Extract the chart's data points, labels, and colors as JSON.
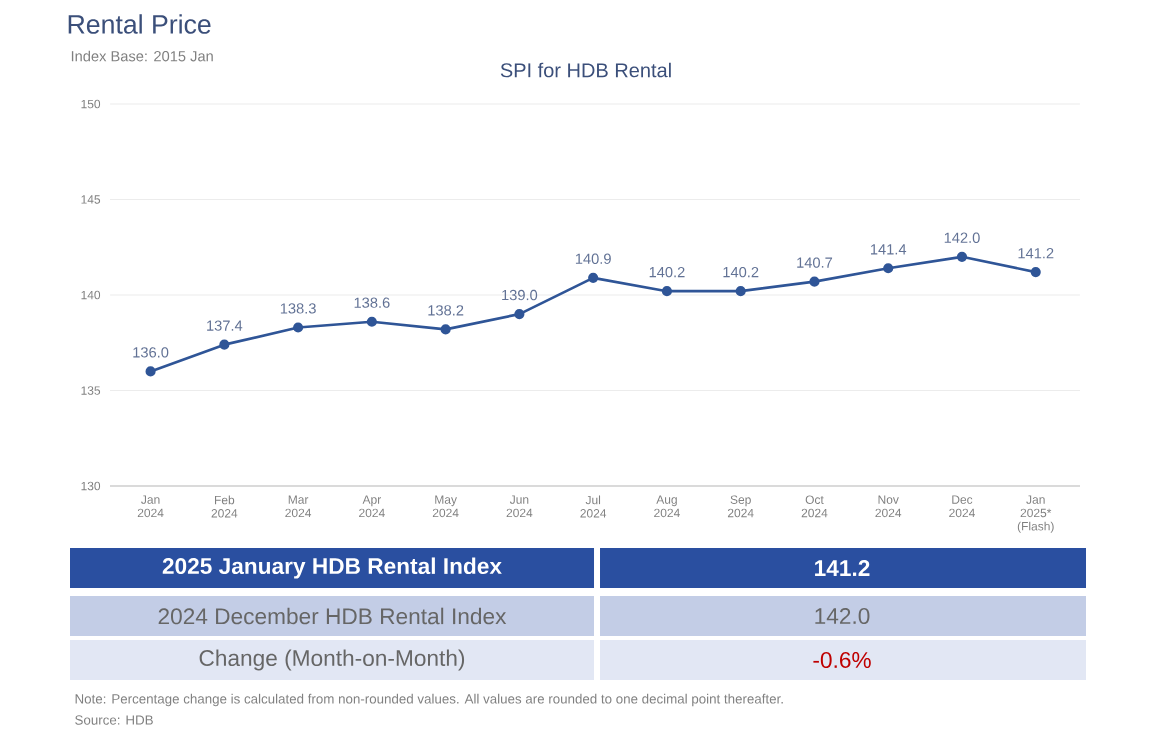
{
  "chart_data": {
    "type": "line",
    "title": "Rental Price",
    "subtitle": "Index Base: 2015 Jan",
    "categories": [
      "Jan 2024",
      "Feb 2024",
      "Mar 2024",
      "Apr 2024",
      "May 2024",
      "Jun 2024",
      "Jul 2024",
      "Aug 2024",
      "Sep 2024",
      "Oct 2024",
      "Nov 2024",
      "Dec 2024",
      "Jan 2025* (Flash)"
    ],
    "values": [
      136.0,
      137.4,
      138.3,
      138.6,
      138.2,
      139.0,
      140.9,
      140.2,
      140.2,
      140.7,
      141.4,
      142.0,
      141.2
    ],
    "value_labels": [
      "136.0",
      "137.4",
      "138.3",
      "138.6",
      "138.2",
      "139.0",
      "140.9",
      "140.2",
      "140.2",
      "140.7",
      "141.4",
      "142.0",
      "141.2"
    ],
    "color": "#2f5597",
    "marker": "circle",
    "line_style": "solid",
    "ylim": [
      130,
      150
    ],
    "yticks": [
      130,
      135,
      140,
      145,
      150
    ],
    "grid": "y",
    "annotations": [
      "SPI for HDB Rental",
      "2025 January HDB Rental Index",
      "141.2",
      "2024 December HDB Rental Index",
      "142.0",
      "Change (Month-on-Month)",
      "-0.6%",
      "Note: Percentage change is calculated from non-rounded values.  All values are rounded to one decimal point thereafter.",
      "Source: HDB"
    ]
  }
}
